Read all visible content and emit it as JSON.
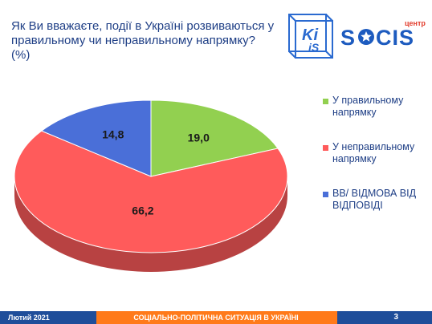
{
  "header": {
    "title": "Як Ви вважаєте, події в Україні розвиваються у правильному чи неправильному напрямку? (%)"
  },
  "logo": {
    "left_text": "KiiS",
    "brand": "SOCIS",
    "brand_small": "центр"
  },
  "chart_data": {
    "type": "pie",
    "slices": [
      {
        "label": "У правильному напрямку",
        "value": 19.0,
        "display": "19,0",
        "color": "#92d050"
      },
      {
        "label": "У неправильному напрямку",
        "value": 66.2,
        "display": "66,2",
        "color": "#ff5b5b"
      },
      {
        "label": "ВВ/ ВІДМОВА ВІД ВІДПОВІДІ",
        "value": 14.8,
        "display": "14,8",
        "color": "#4a6fd8"
      }
    ],
    "legend_position": "right"
  },
  "footer": {
    "date": "Лютий 2021",
    "section": "СОЦІАЛЬНО-ПОЛІТИЧНА СИТУАЦІЯ В УКРАЇНІ",
    "page": "3"
  },
  "colors": {
    "title": "#1f3f86",
    "footer_bg": "#1f4e9a",
    "footer_accent": "#ff7a1a"
  }
}
